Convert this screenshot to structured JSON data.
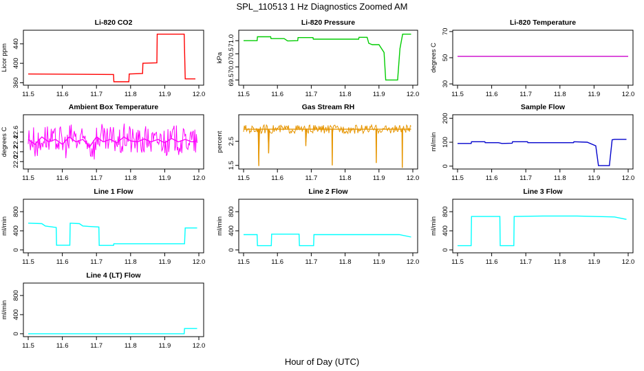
{
  "figure": {
    "title": "SPL_110513  1 Hz Diagnostics Zoomed AM",
    "xlabel": "Hour of Day (UTC)"
  },
  "chart_data": [
    {
      "type": "line",
      "title": "Li-820 CO2",
      "ylabel": "Licor ppm",
      "color": "#ff0000",
      "xlim": [
        11.5,
        12.0
      ],
      "ylim": [
        355,
        468
      ],
      "yticks": [
        "360",
        "400",
        "440"
      ],
      "ytick_values": [
        360,
        400,
        440
      ],
      "xticks": [
        "11.5",
        "11.6",
        "11.7",
        "11.8",
        "11.9",
        "12.0"
      ],
      "series": [
        {
          "x": [
            11.5,
            11.75,
            11.751,
            11.795,
            11.796,
            11.835,
            11.836,
            11.877,
            11.878,
            11.957,
            11.96,
            11.99
          ],
          "y": [
            378,
            377,
            362,
            362,
            378,
            379,
            400,
            401,
            460,
            460,
            368,
            368
          ]
        }
      ]
    },
    {
      "type": "line",
      "title": "Li-820 Pressure",
      "ylabel": "kPa",
      "color": "#00cc00",
      "xlim": [
        11.5,
        12.0
      ],
      "ylim": [
        69.3,
        71.4
      ],
      "yticks": [
        "69.5",
        "70.0",
        "70.5",
        "71.0"
      ],
      "ytick_values": [
        69.5,
        70.0,
        70.5,
        71.0
      ],
      "xticks": [
        "11.5",
        "11.6",
        "11.7",
        "11.8",
        "11.9",
        "12.0"
      ],
      "series": [
        {
          "x": [
            11.5,
            11.54,
            11.541,
            11.58,
            11.581,
            11.62,
            11.63,
            11.66,
            11.661,
            11.705,
            11.706,
            11.84,
            11.841,
            11.865,
            11.87,
            11.88,
            11.9,
            11.915,
            11.92,
            11.955,
            11.962,
            11.97,
            11.995
          ],
          "y": [
            71.0,
            71.0,
            71.15,
            71.15,
            71.08,
            71.08,
            70.99,
            71.0,
            71.12,
            71.12,
            71.06,
            71.06,
            71.13,
            71.13,
            70.9,
            70.85,
            70.85,
            70.55,
            69.5,
            69.5,
            70.7,
            71.25,
            71.25
          ]
        }
      ]
    },
    {
      "type": "line",
      "title": "Li-820 Temperature",
      "ylabel": "degrees C",
      "color": "#cc00cc",
      "xlim": [
        11.5,
        12.0
      ],
      "ylim": [
        29,
        71
      ],
      "yticks": [
        "30",
        "50",
        "70"
      ],
      "ytick_values": [
        30,
        50,
        70
      ],
      "xticks": [
        "11.5",
        "11.6",
        "11.7",
        "11.8",
        "11.9",
        "12.0"
      ],
      "series": [
        {
          "x": [
            11.5,
            12.0
          ],
          "y": [
            51,
            51
          ]
        }
      ]
    },
    {
      "type": "line",
      "title": "Ambient Box Temperature",
      "ylabel": "degrees C",
      "color": "#ff00ff",
      "xlim": [
        11.5,
        12.0
      ],
      "ylim": [
        21.85,
        22.95
      ],
      "yticks": [
        "22.0",
        "22.2",
        "22.4",
        "22.6"
      ],
      "ytick_values": [
        22.0,
        22.2,
        22.4,
        22.6
      ],
      "xticks": [
        "11.5",
        "11.6",
        "11.7",
        "11.8",
        "11.9",
        "12.0"
      ],
      "series": [
        {
          "x": [
            11.5,
            11.52,
            11.54,
            11.56,
            11.58,
            11.6,
            11.62,
            11.64,
            11.66,
            11.68,
            11.7,
            11.72,
            11.74,
            11.76,
            11.78,
            11.8,
            11.82,
            11.84,
            11.86,
            11.88,
            11.9,
            11.92,
            11.94,
            11.96,
            11.98,
            11.995
          ],
          "y": [
            22.45,
            22.35,
            22.5,
            22.4,
            22.45,
            22.35,
            22.5,
            22.4,
            22.45,
            22.3,
            22.5,
            22.4,
            22.45,
            22.38,
            22.5,
            22.42,
            22.4,
            22.46,
            22.4,
            22.45,
            22.38,
            22.47,
            22.4,
            22.45,
            22.4,
            22.42
          ]
        }
      ]
    },
    {
      "type": "line",
      "title": "Gas Stream RH",
      "ylabel": "percent",
      "color": "#e69500",
      "xlim": [
        11.5,
        12.0
      ],
      "ylim": [
        1.35,
        3.6
      ],
      "yticks": [
        "1.5",
        "2.5"
      ],
      "ytick_values": [
        1.5,
        2.5
      ],
      "xticks": [
        "11.5",
        "11.6",
        "11.7",
        "11.8",
        "11.9",
        "12.0"
      ],
      "series": [
        {
          "x": [
            11.5,
            11.544,
            11.545,
            11.546,
            11.55,
            11.573,
            11.574,
            11.575,
            11.6,
            11.683,
            11.684,
            11.685,
            11.73,
            11.761,
            11.762,
            11.763,
            11.8,
            11.891,
            11.892,
            11.893,
            11.93,
            11.968,
            11.969,
            11.97,
            11.995
          ],
          "y": [
            3.0,
            3.0,
            1.5,
            3.0,
            3.0,
            3.0,
            2.0,
            3.0,
            3.0,
            3.0,
            2.3,
            3.0,
            3.0,
            3.0,
            1.5,
            3.0,
            3.0,
            3.0,
            1.6,
            3.0,
            3.0,
            3.0,
            1.4,
            3.0,
            3.0
          ]
        }
      ]
    },
    {
      "type": "line",
      "title": "Sample Flow",
      "ylabel": "ml/min",
      "color": "#0000cc",
      "xlim": [
        11.5,
        12.0
      ],
      "ylim": [
        -12,
        215
      ],
      "yticks": [
        "0",
        "100",
        "200"
      ],
      "ytick_values": [
        0,
        100,
        200
      ],
      "xticks": [
        "11.5",
        "11.6",
        "11.7",
        "11.8",
        "11.9",
        "12.0"
      ],
      "series": [
        {
          "x": [
            11.5,
            11.54,
            11.541,
            11.58,
            11.581,
            11.62,
            11.63,
            11.66,
            11.661,
            11.705,
            11.706,
            11.84,
            11.841,
            11.88,
            11.905,
            11.913,
            11.945,
            11.953,
            11.96,
            11.995
          ],
          "y": [
            95,
            95,
            102,
            102,
            98,
            98,
            95,
            96,
            102,
            102,
            98,
            98,
            102,
            100,
            85,
            2,
            2,
            110,
            112,
            112
          ]
        }
      ]
    },
    {
      "type": "line",
      "title": "Line 1 Flow",
      "ylabel": "ml/min",
      "color": "#00ffff",
      "xlim": [
        11.5,
        12.0
      ],
      "ylim": [
        -60,
        1060
      ],
      "yticks": [
        "0",
        "400",
        "800"
      ],
      "ytick_values": [
        0,
        400,
        800
      ],
      "xticks": [
        "11.5",
        "11.6",
        "11.7",
        "11.8",
        "11.9",
        "12.0"
      ],
      "series": [
        {
          "x": [
            11.5,
            11.54,
            11.55,
            11.582,
            11.583,
            11.622,
            11.623,
            11.65,
            11.66,
            11.707,
            11.708,
            11.75,
            11.751,
            11.958,
            11.96,
            11.995
          ],
          "y": [
            560,
            550,
            500,
            470,
            100,
            100,
            560,
            550,
            500,
            480,
            95,
            95,
            130,
            130,
            460,
            460
          ]
        }
      ]
    },
    {
      "type": "line",
      "title": "Line 2 Flow",
      "ylabel": "ml/min",
      "color": "#00ffff",
      "xlim": [
        11.5,
        12.0
      ],
      "ylim": [
        -60,
        1060
      ],
      "yticks": [
        "0",
        "400",
        "800"
      ],
      "ytick_values": [
        0,
        400,
        800
      ],
      "xticks": [
        "11.5",
        "11.6",
        "11.7",
        "11.8",
        "11.9",
        "12.0"
      ],
      "series": [
        {
          "x": [
            11.5,
            11.54,
            11.541,
            11.582,
            11.583,
            11.664,
            11.665,
            11.707,
            11.708,
            11.96,
            11.995
          ],
          "y": [
            320,
            320,
            90,
            90,
            330,
            330,
            90,
            90,
            320,
            320,
            270
          ]
        }
      ]
    },
    {
      "type": "line",
      "title": "Line 3 Flow",
      "ylabel": "ml/min",
      "color": "#00ffff",
      "xlim": [
        11.5,
        12.0
      ],
      "ylim": [
        -60,
        1060
      ],
      "yticks": [
        "0",
        "400",
        "800"
      ],
      "ytick_values": [
        0,
        400,
        800
      ],
      "xticks": [
        "11.5",
        "11.6",
        "11.7",
        "11.8",
        "11.9",
        "12.0"
      ],
      "series": [
        {
          "x": [
            11.5,
            11.54,
            11.541,
            11.624,
            11.625,
            11.665,
            11.666,
            11.75,
            11.85,
            11.96,
            11.995
          ],
          "y": [
            90,
            90,
            700,
            700,
            90,
            90,
            700,
            710,
            710,
            690,
            640
          ]
        }
      ]
    },
    {
      "type": "line",
      "title": "Line 4 (LT) Flow",
      "ylabel": "ml/min",
      "color": "#00ffff",
      "xlim": [
        11.5,
        12.0
      ],
      "ylim": [
        -60,
        1060
      ],
      "yticks": [
        "0",
        "400",
        "800"
      ],
      "ytick_values": [
        0,
        400,
        800
      ],
      "xticks": [
        "11.5",
        "11.6",
        "11.7",
        "11.8",
        "11.9",
        "12.0"
      ],
      "series": [
        {
          "x": [
            11.5,
            11.957,
            11.958,
            11.995
          ],
          "y": [
            0,
            0,
            110,
            110
          ]
        }
      ]
    }
  ]
}
